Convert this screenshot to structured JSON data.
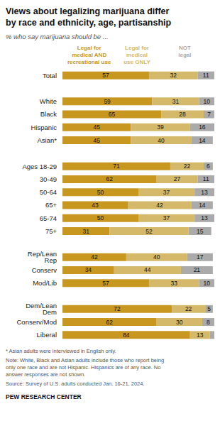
{
  "chart_data": {
    "type": "bar",
    "title": "Views about legalizing marijuana differ\nby race and ethnicity, age, partisanship",
    "subtitle": "% who say marijuana should be ...",
    "orientation": "horizontal",
    "stacked": true,
    "data_labels": true,
    "tick_labels": "y",
    "legend": "top",
    "xlim": [
      0,
      100
    ],
    "categories": [
      "Total",
      null,
      "White",
      "Black",
      "Hispanic",
      "Asian*",
      null,
      "Ages 18-29",
      "30-49",
      "50-64",
      "65+",
      "65-74",
      "75+",
      null,
      "Rep/Lean Rep",
      "Conserv",
      "Mod/Lib",
      null,
      "Dem/Lean Dem",
      "Conserv/Mod",
      "Liberal"
    ],
    "series": [
      {
        "name": "Legal for\nmedical AND\nrecreational use",
        "color": "#c8971f",
        "values": [
          57,
          null,
          59,
          65,
          45,
          45,
          null,
          71,
          62,
          50,
          43,
          50,
          31,
          null,
          42,
          34,
          57,
          null,
          72,
          62,
          84
        ]
      },
      {
        "name": "Legal for\nmedical\nuse ONLY",
        "color": "#d4b96a",
        "values": [
          32,
          null,
          31,
          28,
          39,
          40,
          null,
          22,
          27,
          37,
          42,
          37,
          52,
          null,
          40,
          44,
          33,
          null,
          22,
          30,
          13
        ]
      },
      {
        "name": "NOT\nlegal",
        "color": "#aaaaaa",
        "values": [
          11,
          null,
          10,
          7,
          16,
          14,
          null,
          6,
          11,
          13,
          14,
          13,
          15,
          null,
          17,
          21,
          10,
          null,
          5,
          8,
          3
        ],
        "value_labels": [
          "11",
          null,
          "10",
          "7",
          "16",
          "14",
          null,
          "6",
          "11",
          "13",
          "14",
          "13",
          "15",
          null,
          "17",
          "21",
          "10",
          null,
          "5",
          "8",
          null
        ]
      }
    ],
    "annotations": [
      "* Asian adults were interviewed in English only.",
      "Note: White, Black and Asian adults include those who report being\nonly one race and are not Hispanic. Hispanics are of any race. No\nanswer responses are not shown.",
      "Source: Survey of U.S. adults conducted Jan. 16-21, 2024.",
      "PEW RESEARCH CENTER"
    ]
  }
}
